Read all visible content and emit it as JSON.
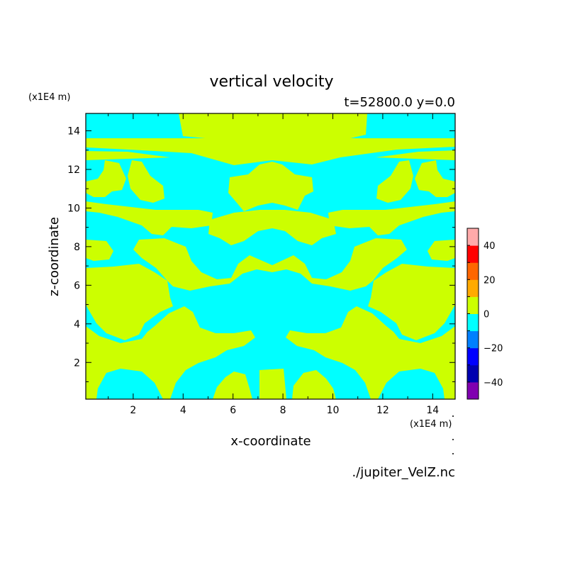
{
  "chart_data": {
    "type": "heatmap",
    "title": "vertical velocity",
    "subtitle": "t=52800.0 y=0.0",
    "xlabel": "x-coordinate",
    "ylabel": "z-coordinate",
    "x_unit": "(x1E4 m)",
    "y_unit": "(x1E4 m)",
    "xlim": [
      0.1,
      14.9
    ],
    "ylim": [
      0.1,
      14.9
    ],
    "x_ticks": [
      2,
      4,
      6,
      8,
      10,
      12,
      14
    ],
    "y_ticks": [
      2,
      4,
      6,
      8,
      10,
      12,
      14
    ],
    "colorbar": {
      "range": [
        -50,
        50
      ],
      "step": 10,
      "tick_values": [
        40,
        20,
        0,
        -20,
        -40
      ],
      "tick_labels": [
        "40",
        "20",
        "0",
        "−20",
        "−40"
      ],
      "colors": [
        "#8000b0",
        "#0000b0",
        "#0000ff",
        "#0080ff",
        "#00ffff",
        "#ccff00",
        "#ffaa00",
        "#ff6600",
        "#ff0000",
        "#ffaaaa"
      ]
    },
    "field_colors": {
      "negative": "#00ffff",
      "positive": "#ccff00"
    },
    "source": "./jupiter_VelZ.nc"
  }
}
